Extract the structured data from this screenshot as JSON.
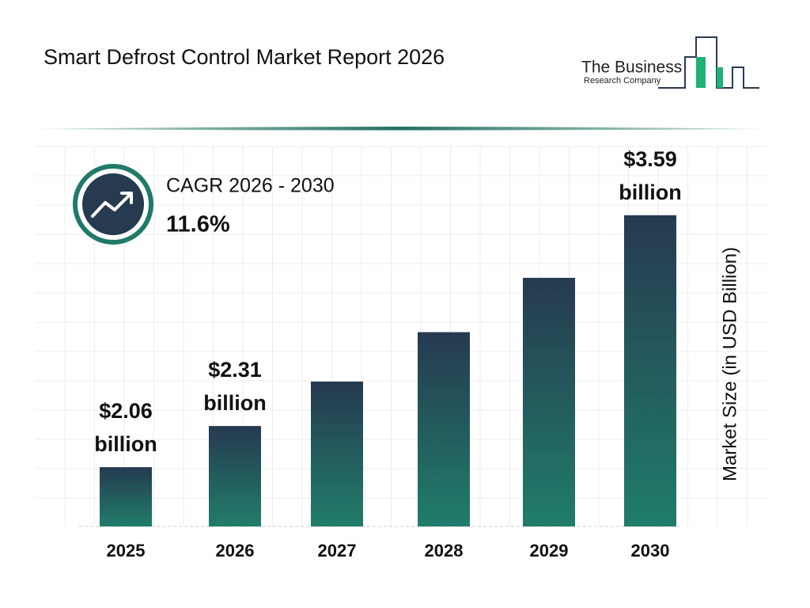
{
  "chart_data": {
    "type": "bar",
    "title": "Smart Defrost Control Market Report 2026",
    "logo": {
      "line1": "The Business",
      "line2": "Research Company"
    },
    "cagr_label": "CAGR 2026 - 2030",
    "cagr_value": "11.6%",
    "y_label": "Market Size (in USD Billion)",
    "categories": [
      "2025",
      "2026",
      "2027",
      "2028",
      "2029",
      "2030"
    ],
    "values": [
      2.06,
      2.31,
      2.58,
      2.88,
      3.21,
      3.59
    ],
    "value_labels": [
      "$2.06 billion",
      "$2.31 billion",
      null,
      null,
      null,
      "$3.59 billion"
    ],
    "gradient": [
      "#263a50",
      "#207d6a"
    ],
    "ylim": [
      1.7,
      3.7
    ]
  }
}
